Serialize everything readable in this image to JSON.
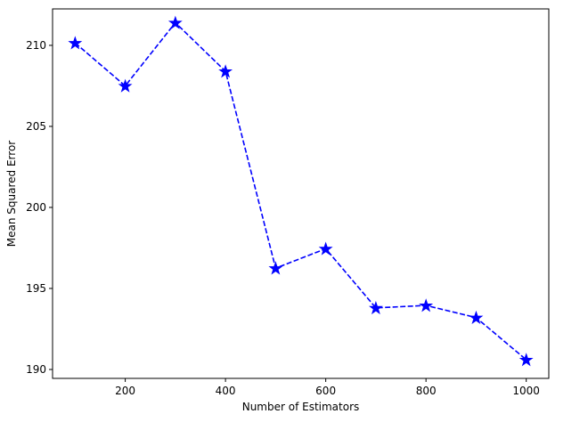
{
  "chart_data": {
    "type": "line",
    "title": "",
    "xlabel": "Number of Estimators",
    "ylabel": "Mean Squared Error",
    "x": [
      100,
      200,
      300,
      400,
      500,
      600,
      700,
      800,
      900,
      1000
    ],
    "series": [
      {
        "values": [
          210.15,
          207.5,
          211.4,
          208.4,
          196.25,
          197.45,
          193.8,
          193.95,
          193.2,
          190.6
        ],
        "color": "#0000ff",
        "line_style": "dashed",
        "marker": "star"
      }
    ],
    "xlim": [
      55,
      1045
    ],
    "ylim": [
      189.45,
      212.25
    ],
    "xticks": [
      200,
      400,
      600,
      800,
      1000
    ],
    "yticks": [
      190,
      195,
      200,
      205,
      210
    ],
    "grid": false,
    "legend": false
  }
}
